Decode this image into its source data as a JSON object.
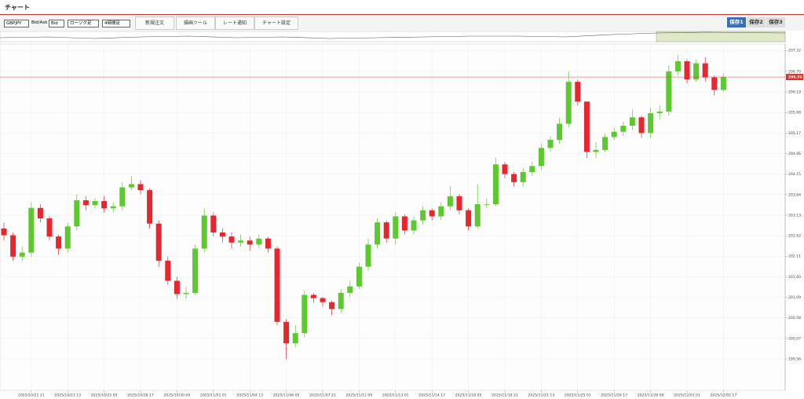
{
  "header": {
    "title": "チャート"
  },
  "toolbar": {
    "symbol": "GBPJPY",
    "price_type_label": "Bid/Ask",
    "price_type": "Bid",
    "chart_style": "ローソク足",
    "timeframe": "4時間足",
    "buttons": [
      "新規注文",
      "描画ツール",
      "レート通知",
      "チャート設定"
    ],
    "saves": [
      "保存1",
      "保存2",
      "保存3"
    ]
  },
  "chart_data": {
    "type": "candlestick",
    "categories": [
      null,
      null,
      null,
      "2025/10/21 21",
      null,
      null,
      null,
      "2025/10/23 13",
      null,
      null,
      null,
      "2025/10/25 05",
      null,
      null,
      null,
      "2025/10/28 17",
      null,
      null,
      null,
      "2025/10/30 09",
      null,
      null,
      null,
      "2025/11/01 01",
      null,
      null,
      null,
      "2025/11/04 13",
      null,
      null,
      null,
      "2025/11/06 05",
      null,
      null,
      null,
      "2025/11/07 21",
      null,
      null,
      null,
      "2025/11/11 09",
      null,
      null,
      null,
      "2025/11/13 01",
      null,
      null,
      null,
      "2025/11/14 17",
      null,
      null,
      null,
      "2025/11/18 05",
      null,
      null,
      null,
      "2025/11/19 21",
      null,
      null,
      null,
      "2025/11/21 13",
      null,
      null,
      null,
      "2025/11/25 01",
      null,
      null,
      null,
      "2025/11/26 17",
      null,
      null,
      null,
      "2025/11/28 09",
      null,
      null,
      null,
      "2025/12/01 01",
      null,
      null,
      null,
      "2025/12/02 17"
    ],
    "open": [
      202.8,
      202.63,
      202.1,
      202.2,
      203.31,
      203.05,
      202.6,
      202.3,
      202.85,
      203.5,
      203.38,
      203.48,
      203.3,
      203.35,
      203.82,
      203.9,
      203.75,
      202.92,
      202.0,
      201.5,
      201.17,
      201.2,
      202.3,
      203.12,
      202.7,
      202.6,
      202.45,
      202.5,
      202.4,
      202.55,
      202.3,
      200.48,
      199.95,
      200.2,
      201.15,
      201.07,
      200.97,
      200.8,
      201.2,
      201.36,
      201.85,
      202.4,
      202.95,
      202.55,
      203.1,
      202.75,
      203.0,
      203.25,
      203.1,
      203.35,
      203.6,
      203.25,
      202.85,
      203.4,
      203.4,
      204.39,
      204.15,
      203.95,
      204.2,
      204.35,
      204.8,
      205.0,
      205.4,
      206.44,
      205.95,
      204.7,
      204.75,
      205.07,
      205.2,
      205.35,
      205.56,
      205.17,
      205.66,
      205.7,
      206.7,
      206.95,
      206.5,
      206.9,
      206.55,
      206.24
    ],
    "high": [
      202.95,
      202.7,
      202.35,
      203.45,
      203.4,
      203.1,
      202.65,
      202.95,
      203.65,
      203.6,
      203.55,
      203.6,
      203.45,
      203.95,
      204.1,
      204.0,
      203.8,
      203.0,
      202.1,
      201.6,
      201.35,
      202.4,
      203.3,
      203.2,
      202.8,
      202.7,
      202.65,
      202.6,
      202.65,
      202.6,
      202.35,
      200.55,
      200.4,
      201.25,
      201.2,
      201.1,
      201.0,
      201.3,
      201.5,
      201.95,
      202.55,
      203.05,
      203.0,
      203.2,
      203.15,
      203.1,
      203.35,
      203.3,
      203.45,
      203.85,
      203.65,
      203.3,
      203.9,
      203.55,
      204.55,
      204.45,
      204.2,
      204.3,
      204.45,
      204.9,
      205.1,
      205.55,
      206.7,
      206.5,
      205.95,
      204.95,
      205.15,
      205.3,
      205.45,
      205.75,
      205.6,
      205.8,
      205.85,
      206.85,
      207.1,
      207.0,
      207.0,
      207.05,
      206.6,
      206.65
    ],
    "low": [
      202.5,
      202.0,
      202.0,
      202.1,
      202.95,
      202.5,
      202.15,
      202.2,
      202.75,
      203.25,
      203.3,
      203.2,
      203.2,
      203.25,
      203.75,
      203.65,
      202.8,
      201.85,
      201.4,
      201.05,
      201.05,
      201.15,
      202.2,
      202.6,
      202.45,
      202.3,
      202.35,
      202.25,
      202.3,
      202.2,
      200.4,
      199.55,
      199.85,
      200.1,
      200.95,
      200.85,
      200.65,
      200.7,
      201.1,
      201.3,
      201.75,
      202.3,
      202.45,
      202.4,
      202.65,
      202.65,
      202.9,
      203.0,
      203.0,
      203.25,
      203.15,
      202.75,
      202.8,
      203.3,
      203.35,
      204.05,
      203.85,
      203.85,
      204.1,
      204.25,
      204.7,
      204.9,
      205.3,
      205.85,
      204.55,
      204.55,
      204.7,
      205.0,
      205.1,
      205.25,
      205.05,
      205.05,
      205.5,
      205.6,
      206.6,
      206.4,
      206.45,
      206.45,
      206.1,
      206.2
    ],
    "close": [
      202.63,
      202.1,
      202.2,
      203.31,
      203.05,
      202.6,
      202.3,
      202.85,
      203.5,
      203.38,
      203.48,
      203.3,
      203.35,
      203.82,
      203.9,
      203.75,
      202.92,
      202.0,
      201.5,
      201.17,
      201.2,
      202.3,
      203.12,
      202.7,
      202.6,
      202.45,
      202.5,
      202.4,
      202.55,
      202.3,
      200.48,
      199.95,
      200.2,
      201.15,
      201.07,
      200.97,
      200.8,
      201.2,
      201.36,
      201.85,
      202.4,
      202.95,
      202.55,
      203.1,
      202.75,
      203.0,
      203.25,
      203.1,
      203.35,
      203.6,
      203.25,
      202.85,
      203.4,
      203.4,
      204.39,
      204.15,
      203.95,
      204.2,
      204.35,
      204.8,
      205.0,
      205.4,
      206.44,
      205.95,
      204.7,
      204.75,
      205.07,
      205.2,
      205.35,
      205.56,
      205.17,
      205.66,
      205.7,
      206.7,
      206.95,
      206.5,
      206.9,
      206.55,
      206.24,
      206.56
    ],
    "up_color": "#5cc92e",
    "down_color": "#e8262d",
    "ylim": [
      198.78,
      207.38
    ],
    "yticks": [
      199.56,
      200.07,
      200.58,
      201.09,
      {
        "value": 201.6,
        "label": "201.60"
      },
      202.11,
      202.62,
      203.13,
      203.64,
      204.15,
      204.66,
      205.17,
      205.68,
      206.19,
      {
        "value": 206.7,
        "label": "206.70"
      },
      207.22
    ],
    "current_price": 206.56,
    "grid": true
  }
}
